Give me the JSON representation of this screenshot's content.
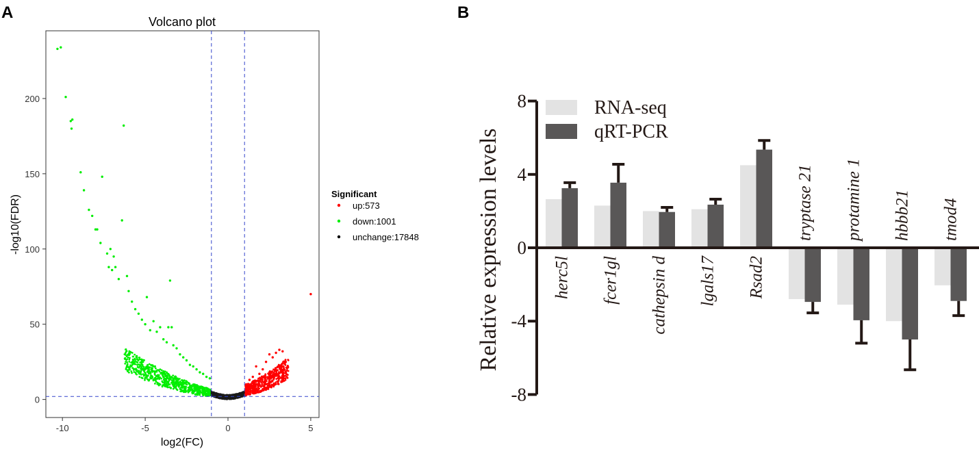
{
  "panels": {
    "a": "A",
    "b": "B"
  },
  "chart_data": [
    {
      "type": "scatter",
      "title": "Volcano plot",
      "xlabel": "log2(FC)",
      "ylabel": "-log10(FDR)",
      "xlim": [
        -11.0,
        5.5
      ],
      "ylim": [
        -12,
        245
      ],
      "xticks": [
        -10,
        -5,
        0,
        5
      ],
      "yticks": [
        0,
        50,
        100,
        150,
        200
      ],
      "thresholds": {
        "log2fc": [
          -1,
          1
        ],
        "neg_log10_fdr": 2
      },
      "legend": {
        "title": "Significant",
        "position": "right",
        "entries": [
          {
            "name": "up:573",
            "color": "#ff0000"
          },
          {
            "name": "down:1001",
            "color": "#00ee00"
          },
          {
            "name": "unchange:17848",
            "color": "#000000"
          }
        ]
      },
      "series": [
        {
          "name": "down",
          "color": "#00ee00",
          "points": [
            [
              -10.3,
              233
            ],
            [
              -10.1,
              234
            ],
            [
              -9.8,
              201
            ],
            [
              -9.5,
              185
            ],
            [
              -9.45,
              180
            ],
            [
              -9.4,
              186
            ],
            [
              -8.9,
              151
            ],
            [
              -8.7,
              139
            ],
            [
              -8.4,
              126
            ],
            [
              -8.2,
              122
            ],
            [
              -8.0,
              113
            ],
            [
              -7.9,
              113
            ],
            [
              -7.7,
              104
            ],
            [
              -7.6,
              148
            ],
            [
              -7.3,
              97
            ],
            [
              -7.1,
              100
            ],
            [
              -7.2,
              88
            ],
            [
              -6.9,
              95
            ],
            [
              -7.0,
              86
            ],
            [
              -6.8,
              88
            ],
            [
              -6.6,
              80
            ],
            [
              -6.4,
              119
            ],
            [
              -6.3,
              182
            ],
            [
              -6.1,
              82
            ],
            [
              -6.0,
              72
            ],
            [
              -5.8,
              65
            ],
            [
              -5.6,
              60
            ],
            [
              -5.4,
              57
            ],
            [
              -5.2,
              53
            ],
            [
              -5.0,
              50
            ],
            [
              -4.9,
              68
            ],
            [
              -4.7,
              46
            ],
            [
              -4.5,
              52
            ],
            [
              -4.3,
              45
            ],
            [
              -4.1,
              48
            ],
            [
              -3.9,
              40
            ],
            [
              -3.7,
              38
            ],
            [
              -3.6,
              48
            ],
            [
              -3.5,
              79
            ],
            [
              -3.4,
              48
            ],
            [
              -3.3,
              36
            ],
            [
              -3.1,
              34
            ],
            [
              -2.9,
              30
            ],
            [
              -2.7,
              28
            ],
            [
              -2.5,
              26
            ],
            [
              -2.3,
              23
            ],
            [
              -2.1,
              22
            ],
            [
              -1.9,
              20
            ],
            [
              -1.7,
              18
            ],
            [
              -1.5,
              17
            ],
            [
              -1.3,
              15
            ],
            [
              -1.1,
              14
            ]
          ]
        },
        {
          "name": "up",
          "color": "#ff0000",
          "points": [
            [
              5.0,
              70
            ],
            [
              3.3,
              32
            ],
            [
              3.1,
              33
            ],
            [
              3.5,
              18
            ],
            [
              3.2,
              22
            ],
            [
              2.9,
              31
            ],
            [
              2.7,
              28
            ],
            [
              2.5,
              30
            ],
            [
              2.3,
              25
            ],
            [
              2.1,
              20
            ],
            [
              1.9,
              17
            ],
            [
              1.7,
              22
            ],
            [
              1.5,
              15
            ],
            [
              1.3,
              13
            ],
            [
              1.1,
              10
            ]
          ]
        }
      ],
      "unchange_summary": "dense V-shaped cloud within |log2FC| < 1 reaching down to (0, 0)"
    },
    {
      "type": "bar",
      "ylabel": "Relative  expression levels",
      "ylim": [
        -8,
        8
      ],
      "yticks": [
        -8,
        -4,
        0,
        4,
        8
      ],
      "categories": [
        "herc5l",
        "fcer1gl",
        "cathepsin d",
        "lgals17",
        "Rsad2",
        "tryptase 21",
        "protamine 1",
        "hbbb21",
        "tmod4"
      ],
      "legend": {
        "position": "top-left"
      },
      "series": [
        {
          "name": "RNA-seq",
          "color": "#e3e3e3",
          "values": [
            2.65,
            2.3,
            2.0,
            2.1,
            4.5,
            -2.8,
            -3.1,
            -4.0,
            -2.05
          ],
          "errors": []
        },
        {
          "name": "qRT-PCR",
          "color": "#595757",
          "values": [
            3.25,
            3.55,
            1.95,
            2.35,
            5.35,
            -2.95,
            -3.95,
            -5.0,
            -2.9
          ],
          "errors": [
            0.3,
            1.0,
            0.25,
            0.3,
            0.5,
            0.6,
            1.25,
            1.65,
            0.8
          ]
        }
      ],
      "error_bar_color": "#231815"
    }
  ]
}
